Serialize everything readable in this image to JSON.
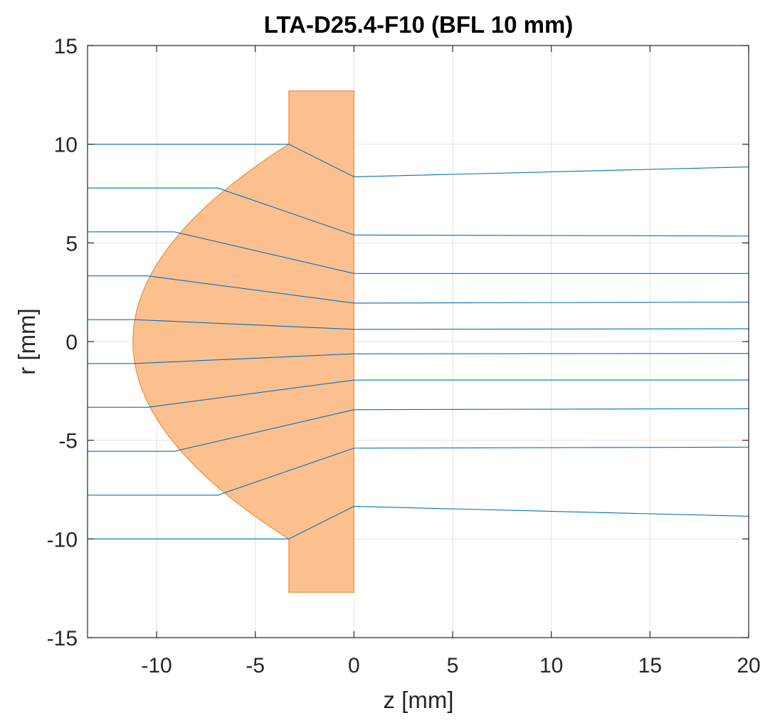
{
  "chart_data": {
    "type": "line",
    "title": "LTA-D25.4-F10 (BFL 10 mm)",
    "xlabel": "z [mm]",
    "ylabel": "r [mm]",
    "xlim": [
      -13.5,
      20
    ],
    "ylim": [
      -15,
      15
    ],
    "xticks": [
      -10,
      -5,
      0,
      5,
      10,
      15,
      20
    ],
    "yticks": [
      -15,
      -10,
      -5,
      0,
      5,
      10,
      15
    ],
    "xtick_labels": [
      "-10",
      "-5",
      "0",
      "5",
      "10",
      "15",
      "20"
    ],
    "ytick_labels": [
      "-15",
      "-10",
      "-5",
      "0",
      "5",
      "10",
      "15"
    ],
    "grid": true,
    "colors": {
      "lens_fill": "#fcc08f",
      "lens_edge": "#ef8f3a",
      "ray": "#0072bd",
      "grid": "#e3e3e3",
      "axis": "#262626"
    },
    "lens": {
      "vertex_z": -11.2,
      "edge_z": -3.3,
      "flat_z": 0,
      "aspheric_aperture_r": 10,
      "outer_radius": 12.7
    },
    "rays": [
      {
        "r0": 10.0,
        "z_hit": -3.3,
        "r_flat": 8.35,
        "r_end": 8.85
      },
      {
        "r0": 7.78,
        "z_hit": -6.9,
        "r_flat": 5.4,
        "r_end": 5.35
      },
      {
        "r0": 5.56,
        "z_hit": -9.1,
        "r_flat": 3.45,
        "r_end": 3.45
      },
      {
        "r0": 3.33,
        "z_hit": -10.45,
        "r_flat": 1.95,
        "r_end": 2.0
      },
      {
        "r0": 1.11,
        "z_hit": -11.1,
        "r_flat": 0.62,
        "r_end": 0.65
      },
      {
        "r0": -1.11,
        "z_hit": -11.1,
        "r_flat": -0.62,
        "r_end": -0.6
      },
      {
        "r0": -3.33,
        "z_hit": -10.45,
        "r_flat": -1.95,
        "r_end": -1.95
      },
      {
        "r0": -5.56,
        "z_hit": -9.1,
        "r_flat": -3.45,
        "r_end": -3.4
      },
      {
        "r0": -7.78,
        "z_hit": -6.9,
        "r_flat": -5.4,
        "r_end": -5.35
      },
      {
        "r0": -10.0,
        "z_hit": -3.3,
        "r_flat": -8.35,
        "r_end": -8.85
      }
    ]
  }
}
